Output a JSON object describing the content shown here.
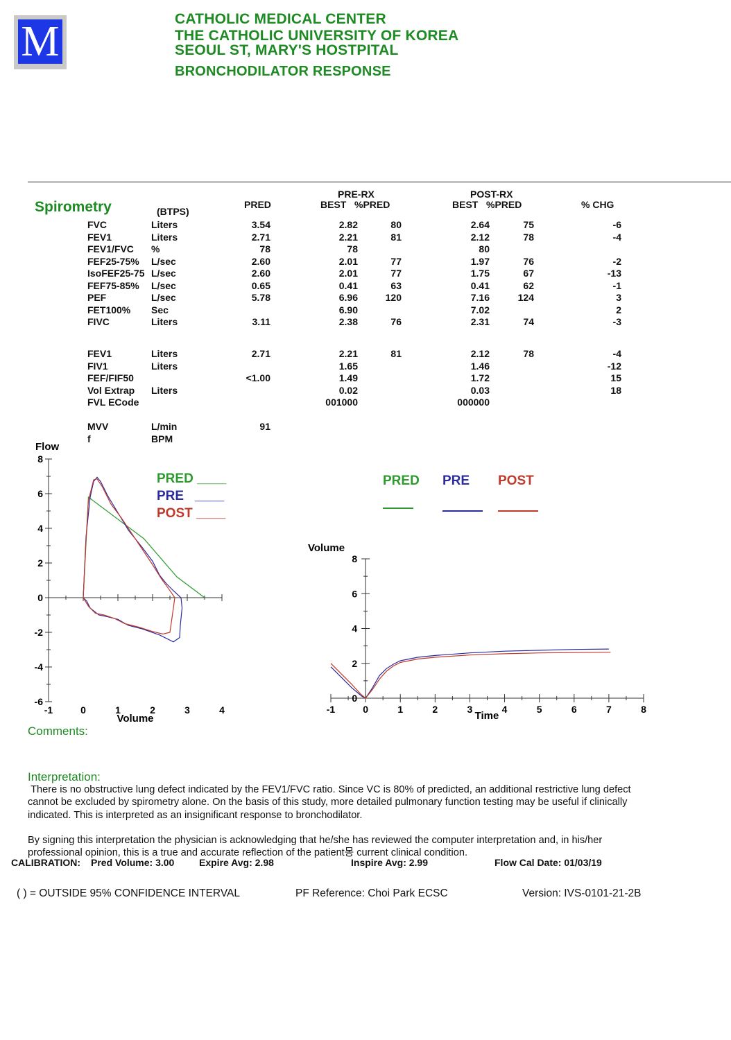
{
  "logo": {
    "letter": "M"
  },
  "header": {
    "line1": "CATHOLIC MEDICAL CENTER",
    "line2": "THE CATHOLIC UNIVERSITY OF KOREA",
    "line3": "SEOUL ST, MARY'S HOSTPITAL",
    "line4": "BRONCHODILATOR RESPONSE"
  },
  "spirometry": {
    "title": "Spirometry",
    "btps": "(BTPS)",
    "col_pred": "PRED",
    "col_pre_group": "PRE-RX",
    "col_post_group": "POST-RX",
    "col_pre_best": "BEST   %PRED",
    "col_post_best": "BEST   %PRED",
    "col_chg": "% CHG",
    "rows": [
      {
        "name": "FVC",
        "unit": "Liters",
        "pred": "3.54",
        "pre_best": "2.82",
        "pre_pct": "80",
        "post_best": "2.64",
        "post_pct": "75",
        "chg": "-6"
      },
      {
        "name": "FEV1",
        "unit": "Liters",
        "pred": "2.71",
        "pre_best": "2.21",
        "pre_pct": "81",
        "post_best": "2.12",
        "post_pct": "78",
        "chg": "-4"
      },
      {
        "name": "FEV1/FVC",
        "unit": "%",
        "pred": "78",
        "pre_best": "78",
        "pre_pct": "",
        "post_best": "80",
        "post_pct": "",
        "chg": ""
      },
      {
        "name": "FEF25-75%",
        "unit": "L/sec",
        "pred": "2.60",
        "pre_best": "2.01",
        "pre_pct": "77",
        "post_best": "1.97",
        "post_pct": "76",
        "chg": "-2"
      },
      {
        "name": "IsoFEF25-75",
        "unit": "L/sec",
        "pred": "2.60",
        "pre_best": "2.01",
        "pre_pct": "77",
        "post_best": "1.75",
        "post_pct": "67",
        "chg": "-13"
      },
      {
        "name": "FEF75-85%",
        "unit": "L/sec",
        "pred": "0.65",
        "pre_best": "0.41",
        "pre_pct": "63",
        "post_best": "0.41",
        "post_pct": "62",
        "chg": "-1"
      },
      {
        "name": "PEF",
        "unit": "L/sec",
        "pred": "5.78",
        "pre_best": "6.96",
        "pre_pct": "120",
        "post_best": "7.16",
        "post_pct": "124",
        "chg": "3"
      },
      {
        "name": "FET100%",
        "unit": "Sec",
        "pred": "",
        "pre_best": "6.90",
        "pre_pct": "",
        "post_best": "7.02",
        "post_pct": "",
        "chg": "2"
      },
      {
        "name": "FIVC",
        "unit": "Liters",
        "pred": "3.11",
        "pre_best": "2.38",
        "pre_pct": "76",
        "post_best": "2.31",
        "post_pct": "74",
        "chg": "-3"
      }
    ],
    "rows2": [
      {
        "name": "FEV1",
        "unit": "Liters",
        "pred": "2.71",
        "pre_best": "2.21",
        "pre_pct": "81",
        "post_best": "2.12",
        "post_pct": "78",
        "chg": "-4"
      },
      {
        "name": "FIV1",
        "unit": "Liters",
        "pred": "",
        "pre_best": "1.65",
        "pre_pct": "",
        "post_best": "1.46",
        "post_pct": "",
        "chg": "-12"
      },
      {
        "name": "FEF/FIF50",
        "unit": "",
        "pred": "<1.00",
        "pre_best": "1.49",
        "pre_pct": "",
        "post_best": "1.72",
        "post_pct": "",
        "chg": "15"
      },
      {
        "name": "Vol Extrap",
        "unit": "Liters",
        "pred": "",
        "pre_best": "0.02",
        "pre_pct": "",
        "post_best": "0.03",
        "post_pct": "",
        "chg": "18"
      },
      {
        "name": "FVL ECode",
        "unit": "",
        "pred": "",
        "pre_best": "001000",
        "pre_pct": "",
        "post_best": "000000",
        "post_pct": "",
        "chg": ""
      }
    ],
    "rows3": [
      {
        "name": "MVV",
        "unit": "L/min",
        "pred": "91",
        "pre_best": "",
        "pre_pct": "",
        "post_best": "",
        "post_pct": "",
        "chg": ""
      },
      {
        "name": "f",
        "unit": "BPM",
        "pred": "",
        "pre_best": "",
        "pre_pct": "",
        "post_best": "",
        "post_pct": "",
        "chg": ""
      }
    ]
  },
  "legend": {
    "pred": "PRED",
    "pre": "PRE",
    "post": "POST",
    "line": "____"
  },
  "colors": {
    "pred": "#2e9a2e",
    "pre": "#2b2b9e",
    "post": "#c0392b",
    "title_green": "#1e8a23"
  },
  "chart_data": [
    {
      "type": "line",
      "title": "",
      "xlabel": "Volume",
      "ylabel": "Flow",
      "xlim": [
        -1,
        4
      ],
      "ylim": [
        -6,
        8
      ],
      "x_ticks": [
        "-1",
        "0",
        "1",
        "2",
        "3",
        "4"
      ],
      "y_ticks": [
        "-6",
        "-4",
        "-2",
        "0",
        "2",
        "4",
        "6",
        "8"
      ],
      "series": [
        {
          "name": "PRED",
          "points": [
            [
              0,
              0
            ],
            [
              0.15,
              5.8
            ],
            [
              1.75,
              3.4
            ],
            [
              2.7,
              1.2
            ],
            [
              3.5,
              0
            ]
          ]
        },
        {
          "name": "PRE",
          "points": [
            [
              0,
              0
            ],
            [
              0.08,
              3.5
            ],
            [
              0.2,
              5.8
            ],
            [
              0.3,
              6.7
            ],
            [
              0.4,
              6.95
            ],
            [
              0.5,
              6.7
            ],
            [
              0.7,
              5.9
            ],
            [
              1.0,
              4.9
            ],
            [
              1.3,
              3.9
            ],
            [
              1.7,
              2.9
            ],
            [
              2.0,
              2.1
            ],
            [
              2.2,
              1.3
            ],
            [
              2.4,
              0.8
            ],
            [
              2.6,
              0.4
            ],
            [
              2.82,
              0
            ],
            [
              2.85,
              -0.6
            ],
            [
              2.8,
              -1.6
            ],
            [
              2.78,
              -2.3
            ],
            [
              2.6,
              -2.55
            ],
            [
              2.2,
              -2.15
            ],
            [
              1.7,
              -1.8
            ],
            [
              1.3,
              -1.6
            ],
            [
              1.0,
              -1.25
            ],
            [
              0.7,
              -1.1
            ],
            [
              0.45,
              -1.0
            ],
            [
              0.2,
              -0.6
            ],
            [
              0.1,
              -0.2
            ],
            [
              0,
              0
            ]
          ]
        },
        {
          "name": "POST",
          "points": [
            [
              0,
              0
            ],
            [
              0.07,
              3.0
            ],
            [
              0.15,
              5.6
            ],
            [
              0.3,
              6.8
            ],
            [
              0.4,
              6.85
            ],
            [
              0.55,
              6.4
            ],
            [
              0.8,
              5.4
            ],
            [
              1.1,
              4.6
            ],
            [
              1.4,
              3.7
            ],
            [
              1.7,
              2.8
            ],
            [
              2.0,
              1.9
            ],
            [
              2.25,
              1.1
            ],
            [
              2.45,
              0.55
            ],
            [
              2.64,
              0
            ],
            [
              2.6,
              -0.6
            ],
            [
              2.55,
              -1.3
            ],
            [
              2.5,
              -2.0
            ],
            [
              2.3,
              -2.1
            ],
            [
              2.0,
              -1.95
            ],
            [
              1.6,
              -1.7
            ],
            [
              1.2,
              -1.5
            ],
            [
              0.9,
              -1.2
            ],
            [
              0.6,
              -1.0
            ],
            [
              0.35,
              -0.9
            ],
            [
              0.15,
              -0.5
            ],
            [
              0,
              0
            ]
          ]
        }
      ]
    },
    {
      "type": "line",
      "title": "",
      "xlabel": "Time",
      "ylabel": "Volume",
      "xlim": [
        -1,
        8
      ],
      "ylim": [
        0,
        8
      ],
      "x_ticks": [
        "-1",
        "0",
        "1",
        "2",
        "3",
        "4",
        "5",
        "6",
        "7",
        "8"
      ],
      "y_ticks": [
        "0",
        "2",
        "4",
        "6",
        "8"
      ],
      "series": [
        {
          "name": "PRED",
          "points": []
        },
        {
          "name": "PRE",
          "points": [
            [
              -1,
              1.8
            ],
            [
              -0.7,
              1.2
            ],
            [
              -0.4,
              0.6
            ],
            [
              -0.1,
              0.1
            ],
            [
              0,
              0
            ],
            [
              0.2,
              0.6
            ],
            [
              0.4,
              1.3
            ],
            [
              0.6,
              1.7
            ],
            [
              0.8,
              1.95
            ],
            [
              1.0,
              2.15
            ],
            [
              1.5,
              2.35
            ],
            [
              2,
              2.45
            ],
            [
              3,
              2.6
            ],
            [
              4,
              2.7
            ],
            [
              5,
              2.75
            ],
            [
              6,
              2.8
            ],
            [
              7,
              2.82
            ]
          ]
        },
        {
          "name": "POST",
          "points": [
            [
              -1,
              2.0
            ],
            [
              -0.7,
              1.4
            ],
            [
              -0.4,
              0.8
            ],
            [
              -0.15,
              0.25
            ],
            [
              0,
              0
            ],
            [
              0.2,
              0.5
            ],
            [
              0.4,
              1.1
            ],
            [
              0.6,
              1.55
            ],
            [
              0.8,
              1.85
            ],
            [
              1.0,
              2.05
            ],
            [
              1.5,
              2.25
            ],
            [
              2,
              2.35
            ],
            [
              3,
              2.48
            ],
            [
              4,
              2.55
            ],
            [
              5,
              2.6
            ],
            [
              6,
              2.62
            ],
            [
              7.05,
              2.64
            ]
          ]
        }
      ]
    }
  ],
  "comments": {
    "label": "Comments:"
  },
  "interpretation": {
    "label": "Interpretation:",
    "p1": " There is no obstructive lung defect indicated by the FEV1/FVC ratio. Since VC is 80% of predicted, an additional restrictive lung defect cannot be excluded by spirometry alone. On the basis of this study, more detailed pulmonary function testing may be useful if clinically indicated. This is interpreted as an insignificant response to bronchodilator.",
    "p2": "By signing this interpretation the physician is acknowledging that he/she has reviewed the computer interpretation and, in his/her professional opinion, this is a true and accurate reflection of the patient몽 current clinical condition."
  },
  "calibration": {
    "label": "CALIBRATION:",
    "pred_volume": "Pred Volume:  3.00",
    "expire": "Expire Avg:  2.98",
    "inspire": "Inspire Avg:  2.99",
    "flow_cal": "Flow Cal Date: 01/03/19"
  },
  "footer": {
    "confidence": "( ) = OUTSIDE  95% CONFIDENCE INTERVAL",
    "reference": "PF Reference: Choi Park ECSC",
    "version": "Version: IVS-0101-21-2B"
  }
}
